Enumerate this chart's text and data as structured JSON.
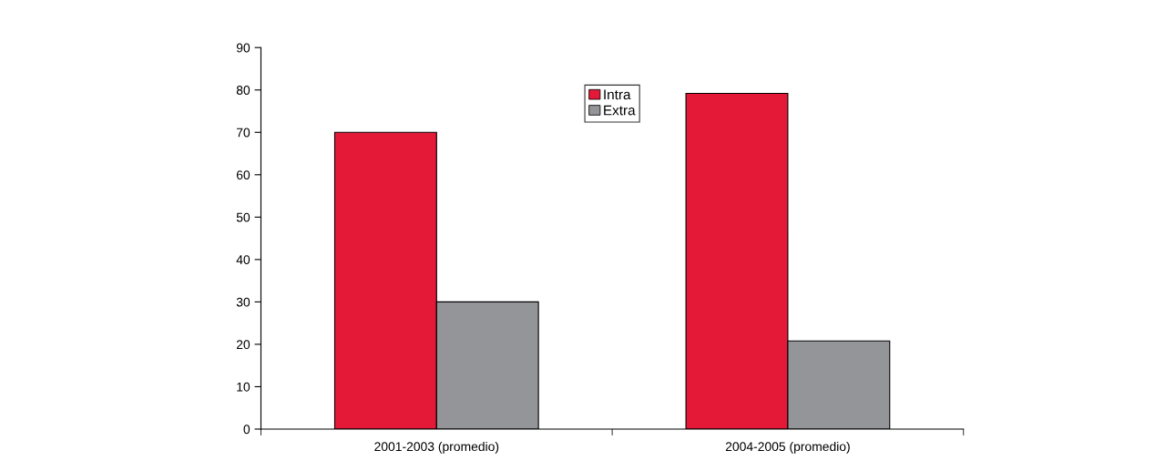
{
  "chart_data": {
    "type": "bar",
    "categories": [
      "2001-2003 (promedio)",
      "2004-2005 (promedio)"
    ],
    "series": [
      {
        "name": "Intra",
        "color": "#e31937",
        "values": [
          70,
          79.2
        ]
      },
      {
        "name": "Extra",
        "color": "#939598",
        "values": [
          30,
          20.8
        ]
      }
    ],
    "ylim": [
      0,
      90
    ],
    "yticks": [
      0,
      10,
      20,
      30,
      40,
      50,
      60,
      70,
      80,
      90
    ],
    "grid": false,
    "legend": "top"
  }
}
